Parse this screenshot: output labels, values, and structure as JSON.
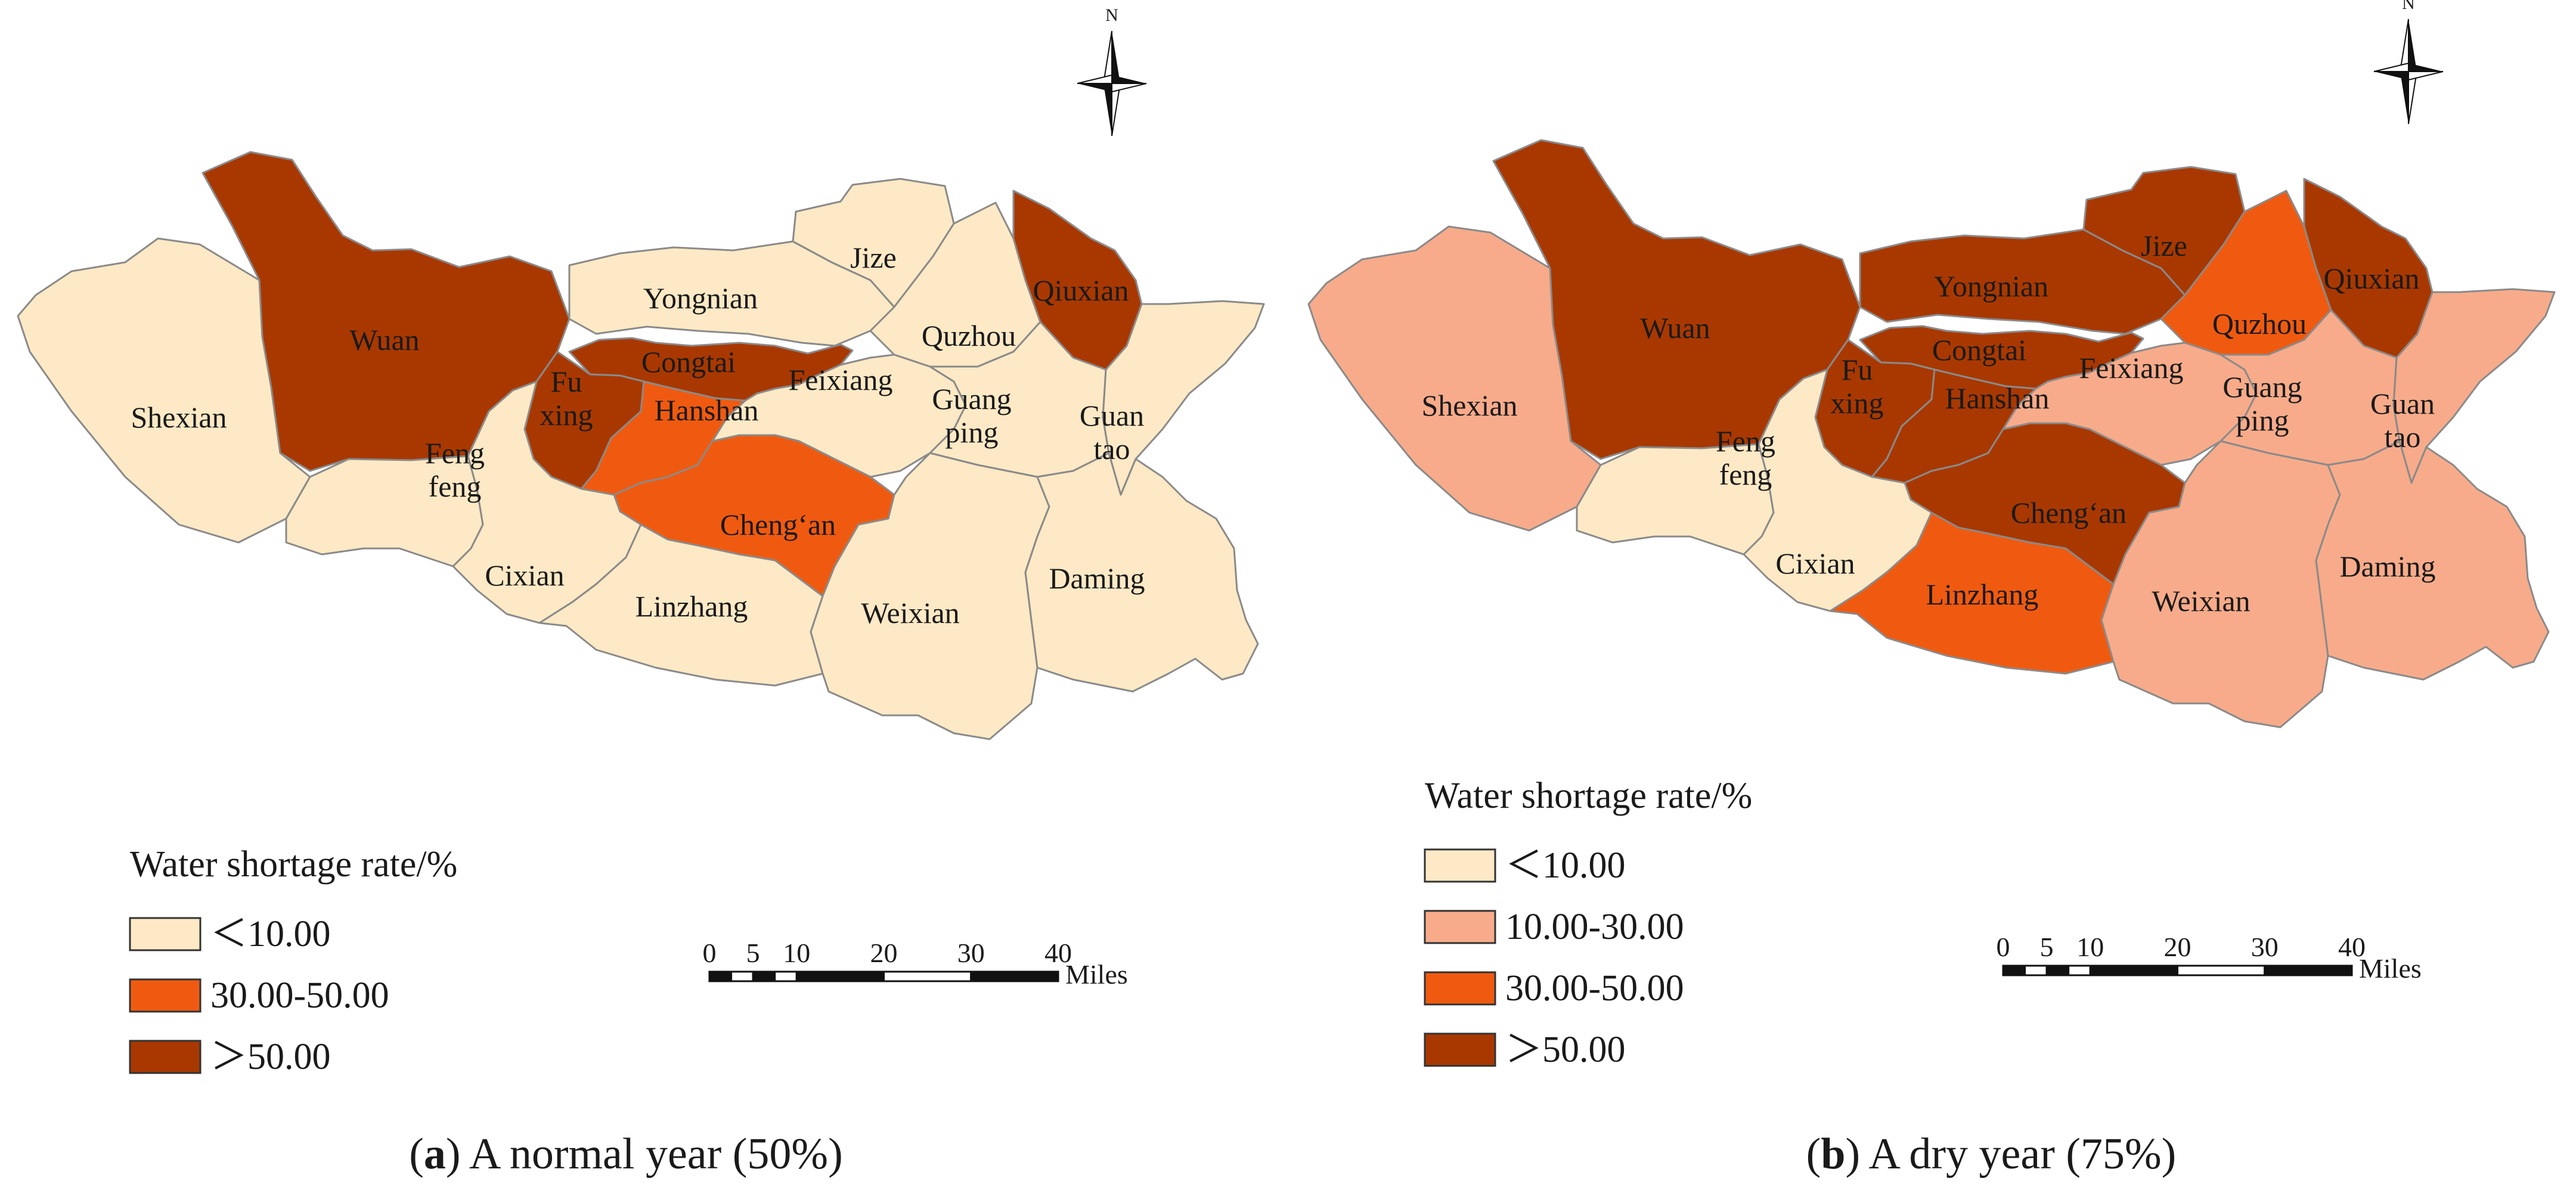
{
  "colors": {
    "low": "#fde9c5",
    "mid_low": "#f7ab8a",
    "mid_high": "#f05a10",
    "high": "#a83800"
  },
  "panels": [
    {
      "caption": {
        "letter": "a",
        "text": ") A normal year (50%)"
      },
      "compass": {
        "label": "N",
        "icon": "north-arrow-icon"
      },
      "regions": [
        {
          "name": "Shexian",
          "lines": [
            "Shexian"
          ],
          "class": "low"
        },
        {
          "name": "Wuan",
          "lines": [
            "Wuan"
          ],
          "class": "high"
        },
        {
          "name": "Yongnian",
          "lines": [
            "Yongnian"
          ],
          "class": "low"
        },
        {
          "name": "Jize",
          "lines": [
            "Jize"
          ],
          "class": "low"
        },
        {
          "name": "Quzhou",
          "lines": [
            "Quzhou"
          ],
          "class": "low"
        },
        {
          "name": "Qiuxian",
          "lines": [
            "Qiuxian"
          ],
          "class": "high"
        },
        {
          "name": "Congtai",
          "lines": [
            "Congtai"
          ],
          "class": "high"
        },
        {
          "name": "Fuxing",
          "lines": [
            "Fu",
            "xing"
          ],
          "class": "high"
        },
        {
          "name": "Hanshan",
          "lines": [
            "Hanshan"
          ],
          "class": "mid_high"
        },
        {
          "name": "Feixiang",
          "lines": [
            "Feixiang"
          ],
          "class": "low"
        },
        {
          "name": "Guangping",
          "lines": [
            "Guang",
            "ping"
          ],
          "class": "low"
        },
        {
          "name": "Guantao",
          "lines": [
            "Guan",
            "tao"
          ],
          "class": "low"
        },
        {
          "name": "Fengfeng",
          "lines": [
            "Feng",
            "feng"
          ],
          "class": "low"
        },
        {
          "name": "Cheng'an",
          "lines": [
            "Cheng‘an"
          ],
          "class": "mid_high"
        },
        {
          "name": "Cixian",
          "lines": [
            "Cixian"
          ],
          "class": "low"
        },
        {
          "name": "Linzhang",
          "lines": [
            "Linzhang"
          ],
          "class": "low"
        },
        {
          "name": "Weixian",
          "lines": [
            "Weixian"
          ],
          "class": "low"
        },
        {
          "name": "Daming",
          "lines": [
            "Daming"
          ],
          "class": "low"
        }
      ],
      "legend": {
        "title": "Water shortage rate/%",
        "items": [
          {
            "label": "＜10.00",
            "class": "low"
          },
          {
            "label": "30.00-50.00",
            "class": "mid_high"
          },
          {
            "label": "＞50.00",
            "class": "high"
          }
        ]
      },
      "scale_bar": {
        "ticks": [
          "0",
          "5",
          "10",
          "20",
          "30",
          "40"
        ],
        "unit": "Miles"
      }
    },
    {
      "caption": {
        "letter": "b",
        "text": ") A dry year (75%)"
      },
      "compass": {
        "label": "N",
        "icon": "north-arrow-icon"
      },
      "regions": [
        {
          "name": "Shexian",
          "lines": [
            "Shexian"
          ],
          "class": "mid_low"
        },
        {
          "name": "Wuan",
          "lines": [
            "Wuan"
          ],
          "class": "high"
        },
        {
          "name": "Yongnian",
          "lines": [
            "Yongnian"
          ],
          "class": "high"
        },
        {
          "name": "Jize",
          "lines": [
            "Jize"
          ],
          "class": "high"
        },
        {
          "name": "Quzhou",
          "lines": [
            "Quzhou"
          ],
          "class": "mid_high"
        },
        {
          "name": "Qiuxian",
          "lines": [
            "Qiuxian"
          ],
          "class": "high"
        },
        {
          "name": "Congtai",
          "lines": [
            "Congtai"
          ],
          "class": "high"
        },
        {
          "name": "Fuxing",
          "lines": [
            "Fu",
            "xing"
          ],
          "class": "high"
        },
        {
          "name": "Hanshan",
          "lines": [
            "Hanshan"
          ],
          "class": "high"
        },
        {
          "name": "Feixiang",
          "lines": [
            "Feixiang"
          ],
          "class": "mid_low"
        },
        {
          "name": "Guangping",
          "lines": [
            "Guang",
            "ping"
          ],
          "class": "mid_low"
        },
        {
          "name": "Guantao",
          "lines": [
            "Guan",
            "tao"
          ],
          "class": "mid_low"
        },
        {
          "name": "Fengfeng",
          "lines": [
            "Feng",
            "feng"
          ],
          "class": "low"
        },
        {
          "name": "Cheng'an",
          "lines": [
            "Cheng‘an"
          ],
          "class": "high"
        },
        {
          "name": "Cixian",
          "lines": [
            "Cixian"
          ],
          "class": "low"
        },
        {
          "name": "Linzhang",
          "lines": [
            "Linzhang"
          ],
          "class": "mid_high"
        },
        {
          "name": "Weixian",
          "lines": [
            "Weixian"
          ],
          "class": "mid_low"
        },
        {
          "name": "Daming",
          "lines": [
            "Daming"
          ],
          "class": "mid_low"
        }
      ],
      "legend": {
        "title": "Water shortage rate/%",
        "items": [
          {
            "label": "＜10.00",
            "class": "low"
          },
          {
            "label": "10.00-30.00",
            "class": "mid_low"
          },
          {
            "label": "30.00-50.00",
            "class": "mid_high"
          },
          {
            "label": "＞50.00",
            "class": "high"
          }
        ]
      },
      "scale_bar": {
        "ticks": [
          "0",
          "5",
          "10",
          "20",
          "30",
          "40"
        ],
        "unit": "Miles"
      }
    }
  ]
}
